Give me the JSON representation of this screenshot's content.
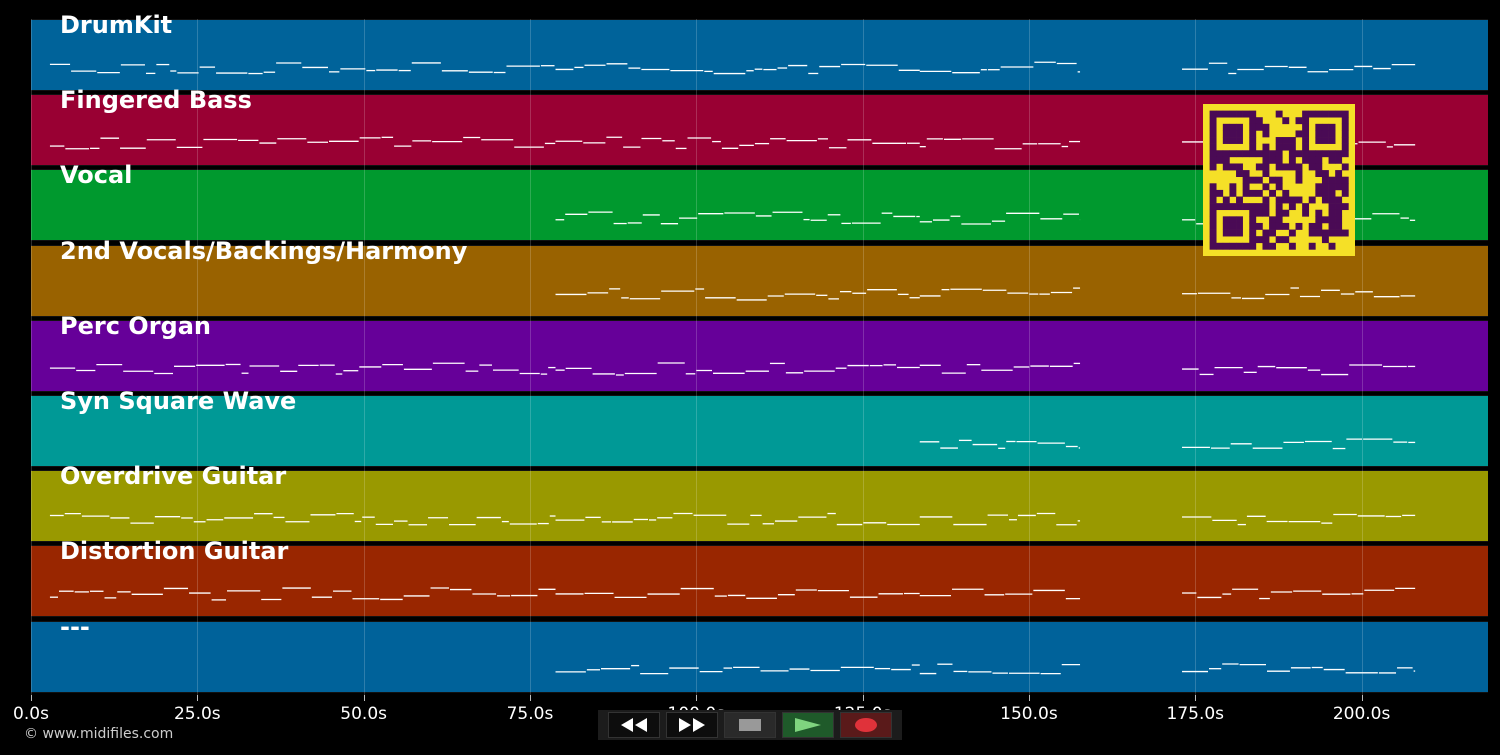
{
  "tracks": [
    {
      "name": "DrumKit",
      "color": "#00639a"
    },
    {
      "name": "Fingered Bass",
      "color": "#990033"
    },
    {
      "name": "Vocal",
      "color": "#00992e"
    },
    {
      "name": "2nd Vocals/Backings/Harmony",
      "color": "#996200"
    },
    {
      "name": "Perc Organ",
      "color": "#660099"
    },
    {
      "name": "Syn Square Wave",
      "color": "#009996"
    },
    {
      "name": "Overdrive Guitar",
      "color": "#999900"
    },
    {
      "name": "Distortion Guitar",
      "color": "#992600"
    },
    {
      "name": "---",
      "color": "#00629a"
    }
  ],
  "axis": {
    "unit": "s",
    "ticks": [
      "0.0s",
      "25.0s",
      "50.0s",
      "75.0s",
      "100.0s",
      "125.0s",
      "150.0s",
      "175.0s",
      "200.0s"
    ],
    "tick_values": [
      0,
      25,
      50,
      75,
      100,
      125,
      150,
      175,
      200
    ],
    "range": [
      0,
      219
    ]
  },
  "copyright": "© www.midifiles.com",
  "transport": {
    "rewind_icon": "rewind-icon",
    "forward_icon": "fast-forward-icon",
    "stop_icon": "stop-icon",
    "play_icon": "play-icon",
    "record_icon": "record-icon"
  },
  "qr_colors": {
    "fg": "#4a0a55",
    "bg": "#f5e027"
  }
}
